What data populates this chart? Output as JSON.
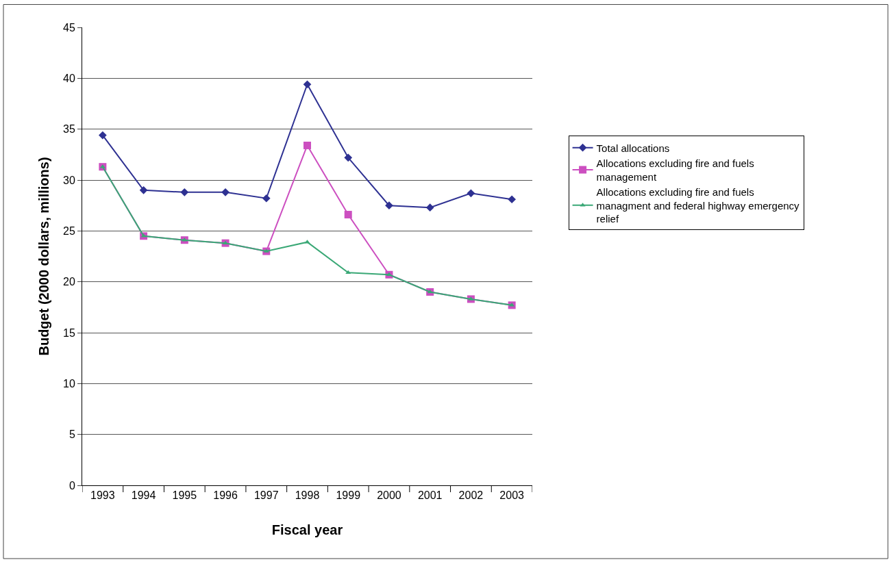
{
  "chart_data": {
    "type": "line",
    "xlabel": "Fiscal year",
    "ylabel": "Budget (2000 dollars, millions)",
    "categories": [
      "1993",
      "1994",
      "1995",
      "1996",
      "1997",
      "1998",
      "1999",
      "2000",
      "2001",
      "2002",
      "2003"
    ],
    "series": [
      {
        "name": "Total allocations",
        "color": "#2e3192",
        "marker": "diamond",
        "values": [
          34.4,
          29.0,
          28.8,
          28.8,
          28.2,
          39.4,
          32.2,
          27.5,
          27.3,
          28.7,
          28.1
        ]
      },
      {
        "name": "Allocations excluding fire and fuels management",
        "color": "#cc4fc0",
        "marker": "square",
        "values": [
          31.3,
          24.5,
          24.1,
          23.8,
          23.0,
          33.4,
          26.6,
          20.7,
          19.0,
          18.3,
          17.7
        ]
      },
      {
        "name": "Allocations excluding fire and fuels managment and federal highway emergency relief",
        "color": "#3aa876",
        "marker": "triangle",
        "values": [
          31.3,
          24.5,
          24.1,
          23.8,
          23.0,
          23.9,
          20.9,
          20.7,
          19.0,
          18.3,
          17.7
        ]
      }
    ],
    "ylim": [
      0,
      45
    ],
    "yticks": [
      0,
      5,
      10,
      15,
      20,
      25,
      30,
      35,
      40,
      45
    ],
    "grid": "y",
    "legend": "right",
    "line_style": "solid"
  }
}
